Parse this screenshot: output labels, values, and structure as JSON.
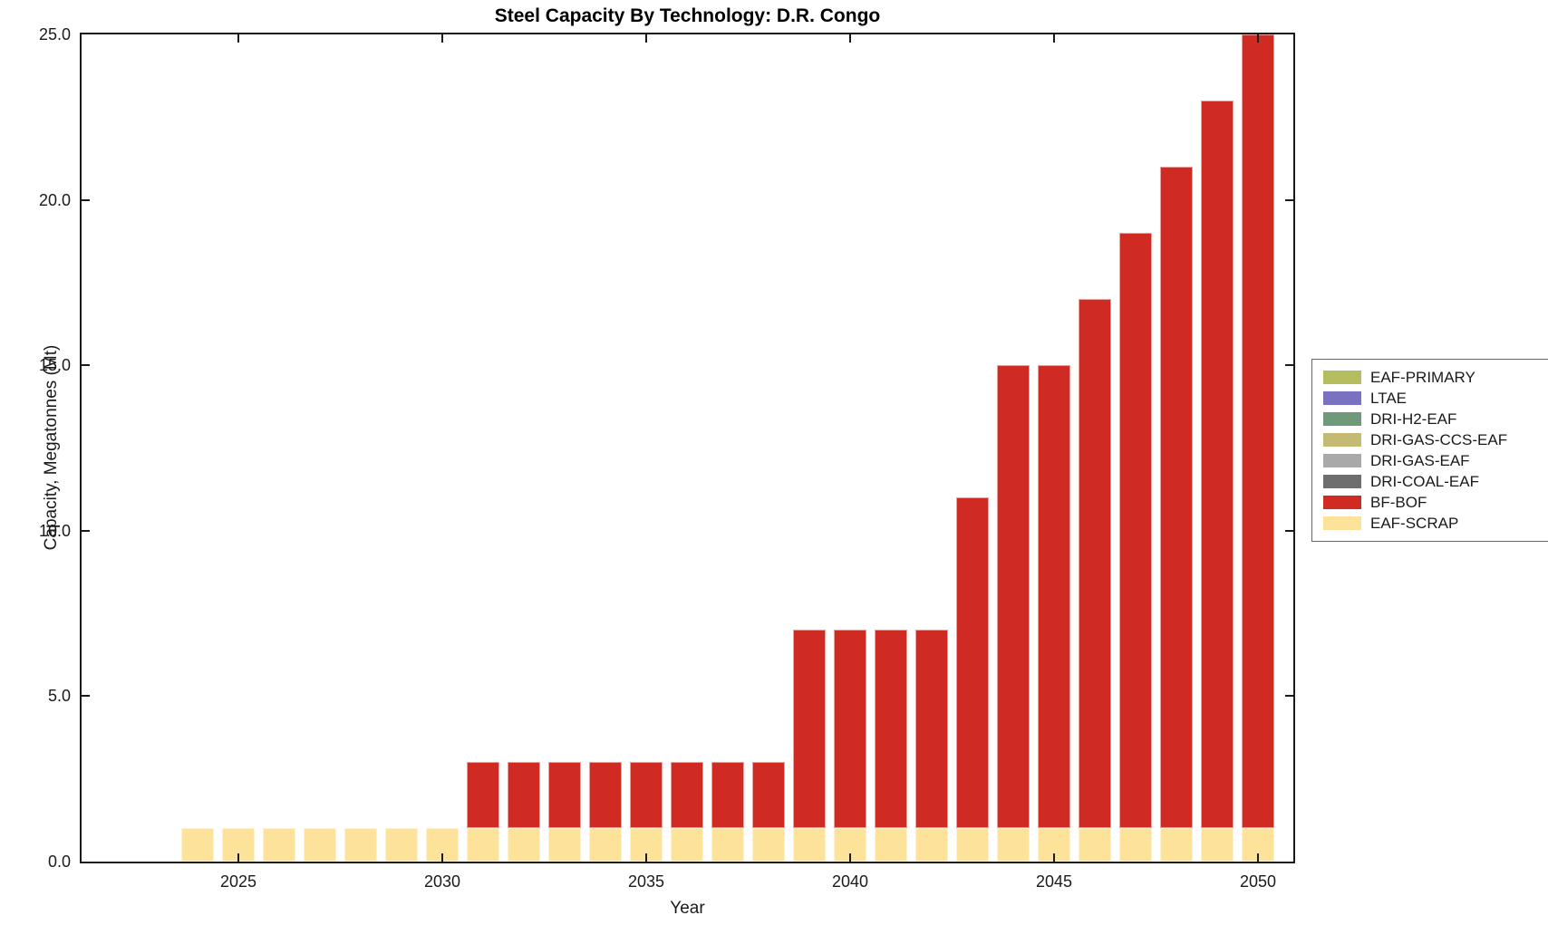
{
  "title": "Steel Capacity By Technology: D.R. Congo",
  "chart_data": {
    "type": "bar",
    "stacked": true,
    "title": "Steel Capacity By Technology: D.R. Congo",
    "xlabel": "Year",
    "ylabel": "Capacity, Megatonnes (Mt)",
    "ylim": [
      0,
      25
    ],
    "grid": false,
    "yticks": [
      0,
      5,
      10,
      15,
      20,
      25
    ],
    "ytick_labels": [
      "0.0",
      "5.0",
      "10.0",
      "15.0",
      "20.0",
      "25.0"
    ],
    "xticks": [
      2025,
      2030,
      2035,
      2040,
      2045,
      2050
    ],
    "xtick_labels": [
      "2025",
      "2030",
      "2035",
      "2040",
      "2045",
      "2050"
    ],
    "years": [
      2024,
      2025,
      2026,
      2027,
      2028,
      2029,
      2030,
      2031,
      2032,
      2033,
      2034,
      2035,
      2036,
      2037,
      2038,
      2039,
      2040,
      2041,
      2042,
      2043,
      2044,
      2045,
      2046,
      2047,
      2048,
      2049,
      2050
    ],
    "series": [
      {
        "name": "EAF-SCRAP",
        "color": "#fde399",
        "values": [
          1,
          1,
          1,
          1,
          1,
          1,
          1,
          1,
          1,
          1,
          1,
          1,
          1,
          1,
          1,
          1,
          1,
          1,
          1,
          1,
          1,
          1,
          1,
          1,
          1,
          1,
          1
        ]
      },
      {
        "name": "BF-BOF",
        "color": "#cf2b23",
        "values": [
          0,
          0,
          0,
          0,
          0,
          0,
          0,
          2,
          2,
          2,
          2,
          2,
          2,
          2,
          2,
          6,
          6,
          6,
          6,
          10,
          14,
          14,
          16,
          18,
          20,
          22,
          24
        ]
      }
    ],
    "totals": [
      1,
      1,
      1,
      1,
      1,
      1,
      1,
      3,
      3,
      3,
      3,
      3,
      3,
      3,
      3,
      7,
      7,
      7,
      7,
      11,
      15,
      15,
      17,
      19,
      21,
      23,
      25
    ],
    "legend": {
      "position": "right",
      "entries": [
        {
          "label": "EAF-PRIMARY",
          "color": "#b6bd5f"
        },
        {
          "label": "LTAE",
          "color": "#7b71c1"
        },
        {
          "label": "DRI-H2-EAF",
          "color": "#6e9a7a"
        },
        {
          "label": "DRI-GAS-CCS-EAF",
          "color": "#c4ba74"
        },
        {
          "label": "DRI-GAS-EAF",
          "color": "#a9a9a9"
        },
        {
          "label": "DRI-COAL-EAF",
          "color": "#6e6e6e"
        },
        {
          "label": "BF-BOF",
          "color": "#cf2b23"
        },
        {
          "label": "EAF-SCRAP",
          "color": "#fde399"
        }
      ]
    }
  }
}
